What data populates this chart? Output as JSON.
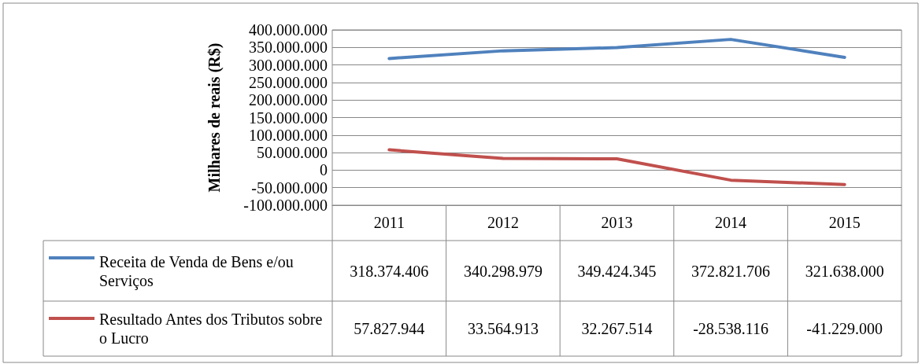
{
  "chart_data": {
    "type": "line",
    "ylabel": "Milhares de reais (R$)",
    "categories": [
      "2011",
      "2012",
      "2013",
      "2014",
      "2015"
    ],
    "series": [
      {
        "name": "Receita de Venda de Bens e/ou Serviços",
        "color": "#4f81bd",
        "values": [
          318374406,
          340298979,
          349424345,
          372821706,
          321638000
        ],
        "value_labels": [
          "318.374.406",
          "340.298.979",
          "349.424.345",
          "372.821.706",
          "321.638.000"
        ]
      },
      {
        "name": "Resultado Antes dos Tributos sobre o Lucro",
        "color": "#c0504d",
        "values": [
          57827944,
          33564913,
          32267514,
          -28538116,
          -41229000
        ],
        "value_labels": [
          "57.827.944",
          "33.564.913",
          "32.267.514",
          "-28.538.116",
          "-41.229.000"
        ]
      }
    ],
    "ylim": [
      -100000000,
      400000000
    ],
    "yticks": [
      {
        "value": -100000000,
        "label": "-100.000.000"
      },
      {
        "value": -50000000,
        "label": "-50.000.000"
      },
      0,
      {
        "value": 50000000,
        "label": "50.000.000"
      },
      {
        "value": 100000000,
        "label": "100.000.000"
      },
      {
        "value": 150000000,
        "label": "150.000.000"
      },
      {
        "value": 200000000,
        "label": "200.000.000"
      },
      {
        "value": 250000000,
        "label": "250.000.000"
      },
      {
        "value": 300000000,
        "label": "300.000.000"
      },
      {
        "value": 350000000,
        "label": "350.000.000"
      },
      {
        "value": 400000000,
        "label": "400.000.000"
      }
    ],
    "grid": "y",
    "legend": "bottom",
    "marker": "none"
  }
}
